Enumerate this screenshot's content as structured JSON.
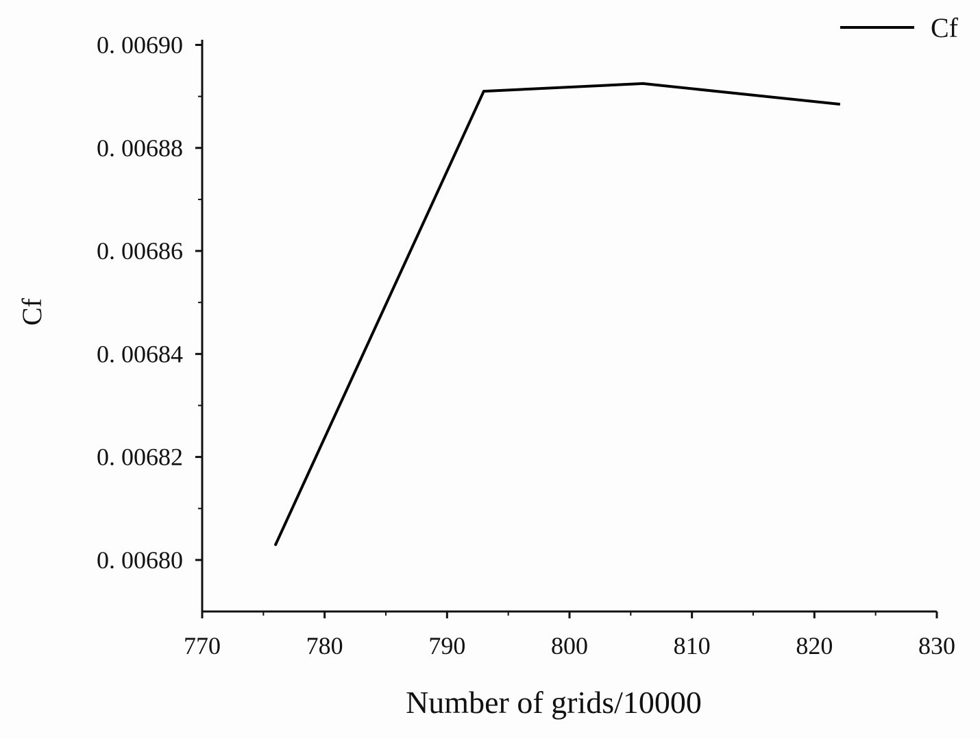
{
  "chart_data": {
    "type": "line",
    "title": "",
    "xlabel": "Number of grids/10000",
    "ylabel": "Cf",
    "xlim": [
      770,
      830
    ],
    "ylim": [
      0.00679,
      0.006901
    ],
    "xticks": [
      770,
      780,
      790,
      800,
      810,
      820,
      830
    ],
    "xtick_labels": [
      "770",
      "780",
      "790",
      "800",
      "810",
      "820",
      "830"
    ],
    "yticks": [
      0.0068,
      0.00682,
      0.00684,
      0.00686,
      0.00688,
      0.0069
    ],
    "ytick_labels": [
      "0. 00680",
      "0. 00682",
      "0. 00684",
      "0. 00686",
      "0. 00688",
      "0. 00690"
    ],
    "grid": false,
    "legend_position": "top-right",
    "colors": {
      "line": "#000000",
      "axis": "#111111"
    },
    "series": [
      {
        "name": "Cf",
        "x": [
          776,
          793,
          806,
          822
        ],
        "y": [
          0.006803,
          0.006891,
          0.0068925,
          0.0068885
        ]
      }
    ]
  }
}
